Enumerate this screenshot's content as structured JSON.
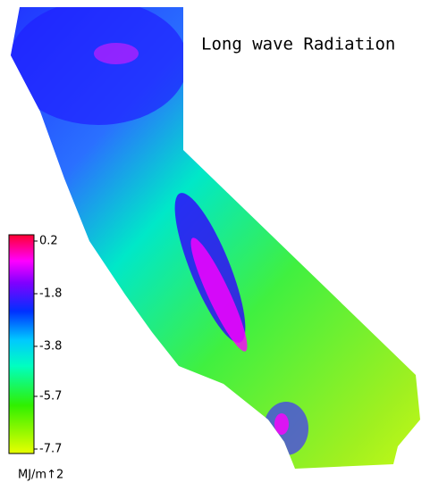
{
  "title": "Long wave Radiation",
  "colorbar": {
    "lim": [
      -7.7,
      0.2
    ],
    "ticks": [
      0.2,
      -1.8,
      -3.8,
      -5.7,
      -7.7
    ],
    "unit": "MJ/m↑2"
  }
}
